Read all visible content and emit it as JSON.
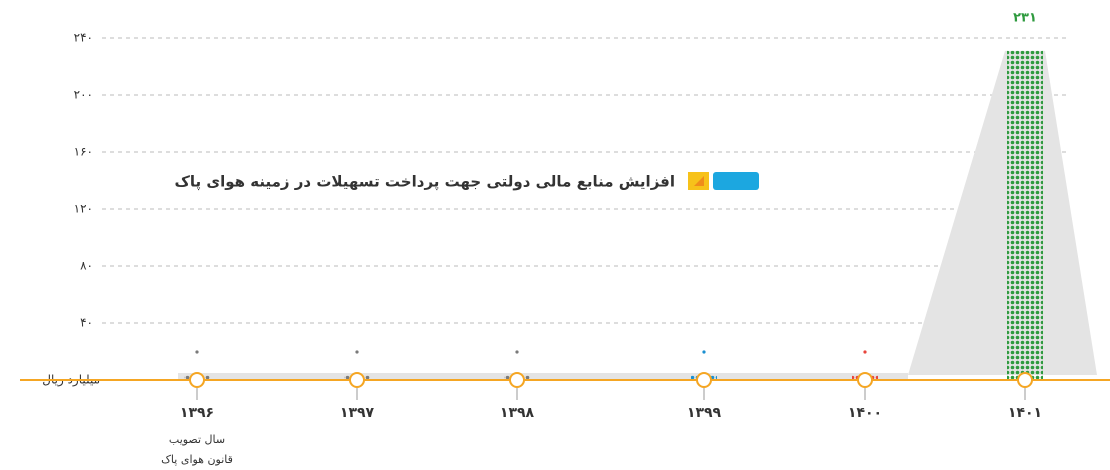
{
  "chart_data": {
    "type": "bar",
    "title": "افزایش منابع مالی دولتی جهت پرداخت تسهیلات در زمینه هوای پاک",
    "categories": [
      "۱۳۹۶",
      "۱۳۹۷",
      "۱۳۹۸",
      "۱۳۹۹",
      "۱۴۰۰",
      "۱۴۰۱"
    ],
    "values": [
      3,
      3,
      3,
      3,
      3,
      231
    ],
    "value_labels": [
      null,
      null,
      null,
      null,
      null,
      "۲۳۱"
    ],
    "colors": [
      "#7a7a7a",
      "#7a7a7a",
      "#7a7a7a",
      "#1a8fd0",
      "#e8453c",
      "#2e9a3e"
    ],
    "ylim": [
      0,
      240
    ],
    "yticks": [
      {
        "value": 0,
        "label": "۰ میلیارد ریال"
      },
      {
        "value": 40,
        "label": "۴۰"
      },
      {
        "value": 80,
        "label": "۸۰"
      },
      {
        "value": 120,
        "label": "۱۲۰"
      },
      {
        "value": 160,
        "label": "۱۶۰"
      },
      {
        "value": 200,
        "label": "۲۰۰"
      },
      {
        "value": 240,
        "label": "۲۴۰"
      }
    ],
    "grid": true,
    "annotations": [
      "سال تصویب",
      "قانون هوای پاک"
    ]
  }
}
